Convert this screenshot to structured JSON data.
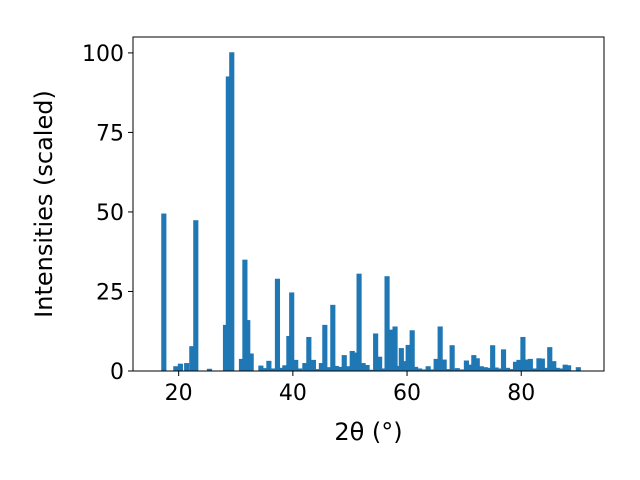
{
  "chart_data": {
    "type": "bar",
    "xlabel": "2θ (°)",
    "ylabel": "Intensities (scaled)",
    "xlim": [
      12,
      94.5
    ],
    "ylim": [
      0,
      105
    ],
    "xticks": [
      20,
      40,
      60,
      80
    ],
    "yticks": [
      0,
      25,
      50,
      75,
      100
    ],
    "grid": false,
    "bar_color": "#1f77b4",
    "bar_width": 0.9,
    "x": [
      17.4,
      19.5,
      20.3,
      21.4,
      22.3,
      23.0,
      25.4,
      28.2,
      28.7,
      29.3,
      31.0,
      31.6,
      32.1,
      32.7,
      34.4,
      35.1,
      35.8,
      36.6,
      37.3,
      37.9,
      38.6,
      39.3,
      39.8,
      40.5,
      41.2,
      42.1,
      42.8,
      43.6,
      44.3,
      45.0,
      45.6,
      46.3,
      47.0,
      47.6,
      48.3,
      49.0,
      49.7,
      50.4,
      51.0,
      51.6,
      52.3,
      53.0,
      53.8,
      54.5,
      55.2,
      55.8,
      56.5,
      57.1,
      57.9,
      58.4,
      59.0,
      59.6,
      60.2,
      60.9,
      61.5,
      62.2,
      63.0,
      63.7,
      64.4,
      65.1,
      65.8,
      66.5,
      67.2,
      67.9,
      68.8,
      69.7,
      70.4,
      71.0,
      71.7,
      72.3,
      73.0,
      73.7,
      74.4,
      75.0,
      75.6,
      76.2,
      76.9,
      77.6,
      78.3,
      79.0,
      79.6,
      80.3,
      81.0,
      81.6,
      82.4,
      83.1,
      83.7,
      84.4,
      85.0,
      85.7,
      86.3,
      87.0,
      87.7,
      88.3,
      89.1,
      90.0
    ],
    "values": [
      49.5,
      1.5,
      2.3,
      2.5,
      7.8,
      47.4,
      0.7,
      14.5,
      92.6,
      100.2,
      3.8,
      35.0,
      16.0,
      5.5,
      1.7,
      0.9,
      3.2,
      0.8,
      29.0,
      1.0,
      1.8,
      11.0,
      24.7,
      3.5,
      0.8,
      2.5,
      10.7,
      3.5,
      0.6,
      2.5,
      14.5,
      1.2,
      20.8,
      1.6,
      1.3,
      5.0,
      1.5,
      6.3,
      5.8,
      30.6,
      2.5,
      1.9,
      0.4,
      11.8,
      4.5,
      0.8,
      29.8,
      13.0,
      14.0,
      1.6,
      7.2,
      3.1,
      8.2,
      12.8,
      1.3,
      0.8,
      0.5,
      1.5,
      0.5,
      3.8,
      14.0,
      3.6,
      0.6,
      8.1,
      0.9,
      0.5,
      3.3,
      2.0,
      5.0,
      4.0,
      1.5,
      1.2,
      1.0,
      8.1,
      1.1,
      0.8,
      6.8,
      1.0,
      0.6,
      2.9,
      3.5,
      10.7,
      3.6,
      3.8,
      0.8,
      4.0,
      3.9,
      1.0,
      7.5,
      3.1,
      1.0,
      0.8,
      2.0,
      1.8,
      0.2,
      1.2
    ]
  }
}
